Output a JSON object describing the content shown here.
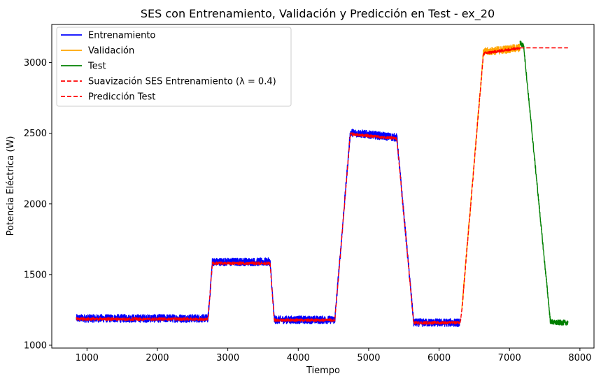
{
  "chart_data": {
    "type": "line",
    "title": "SES con Entrenamiento, Validación y Predicción en Test - ex_20",
    "xlabel": "Tiempo",
    "ylabel": "Potencia Eléctrica (W)",
    "xlim": [
      500,
      8200
    ],
    "ylim": [
      980,
      3270
    ],
    "xticks": [
      1000,
      2000,
      3000,
      4000,
      5000,
      6000,
      7000,
      8000
    ],
    "yticks": [
      1000,
      1500,
      2000,
      2500,
      3000
    ],
    "grid": false,
    "legend_position": "top-left",
    "series": [
      {
        "name": "Entrenamiento",
        "color": "#0000ff",
        "style": "solid",
        "noise": 28,
        "x": [
          850,
          2720,
          2780,
          3600,
          3660,
          4520,
          4740,
          5400,
          5640,
          6300
        ],
        "y": [
          1190,
          1190,
          1590,
          1590,
          1180,
          1180,
          2505,
          2470,
          1160,
          1160
        ]
      },
      {
        "name": "Validación",
        "color": "#ffa500",
        "style": "solid",
        "noise": 28,
        "x": [
          6320,
          6630,
          7150
        ],
        "y": [
          1230,
          3075,
          3105
        ]
      },
      {
        "name": "Test",
        "color": "#008000",
        "style": "solid",
        "noise": 18,
        "x": [
          7150,
          7200,
          7580,
          7630,
          7830
        ],
        "y": [
          3140,
          3120,
          1170,
          1160,
          1160
        ]
      },
      {
        "name": "Suavización SES Entrenamiento (λ = 0.4)",
        "color": "#ff0000",
        "style": "dashed",
        "noise": 10,
        "x": [
          850,
          2720,
          2780,
          3600,
          3660,
          4520,
          4740,
          5400,
          5640,
          6300,
          6320,
          6630,
          7150
        ],
        "y": [
          1185,
          1185,
          1580,
          1580,
          1178,
          1178,
          2495,
          2462,
          1158,
          1160,
          1230,
          3065,
          3105
        ]
      },
      {
        "name": "Predicción Test",
        "color": "#ff0000",
        "style": "dashed",
        "noise": 0,
        "x": [
          7150,
          7830
        ],
        "y": [
          3105,
          3105
        ]
      }
    ]
  },
  "legend": {
    "entries": [
      {
        "label": "Entrenamiento",
        "color": "#0000ff",
        "style": "solid"
      },
      {
        "label": "Validación",
        "color": "#ffa500",
        "style": "solid"
      },
      {
        "label": "Test",
        "color": "#008000",
        "style": "solid"
      },
      {
        "label": "Suavización SES Entrenamiento (λ = 0.4)",
        "color": "#ff0000",
        "style": "dashed"
      },
      {
        "label": "Predicción Test",
        "color": "#ff0000",
        "style": "dashed"
      }
    ]
  }
}
